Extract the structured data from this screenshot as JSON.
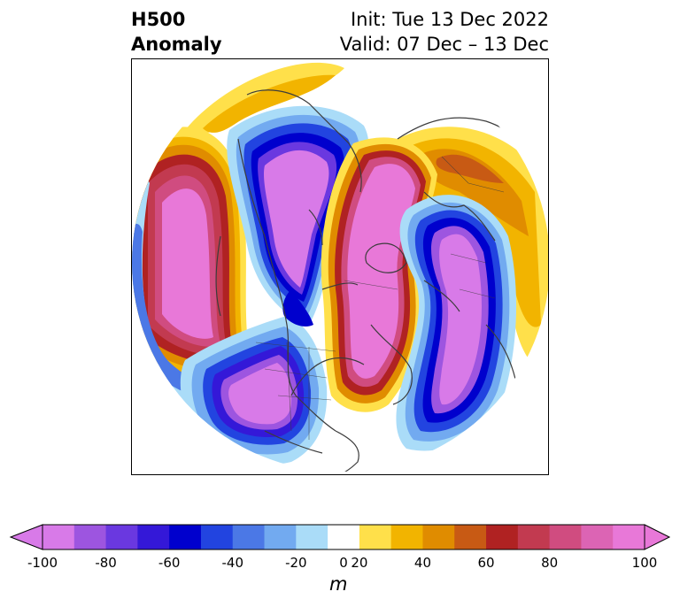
{
  "title": {
    "left_line1": "H500",
    "left_line2": "Anomaly",
    "right_line1": "Init: Tue 13 Dec 2022",
    "right_line2": "Valid: 07 Dec – 13 Dec"
  },
  "colorbar": {
    "units": "m",
    "ticks": [
      "-100",
      "-80",
      "-60",
      "-40",
      "-20",
      "0",
      "20",
      "40",
      "60",
      "80",
      "100"
    ],
    "levels": [
      -100,
      -90,
      -80,
      -70,
      -60,
      -50,
      -40,
      -30,
      -20,
      -10,
      10,
      20,
      30,
      40,
      50,
      60,
      70,
      80,
      90,
      100
    ],
    "colors": [
      "#d87ae8",
      "#9d55e0",
      "#6a38e0",
      "#3418d8",
      "#0000cd",
      "#2244e0",
      "#4b78e6",
      "#72aaf0",
      "#aadcf8",
      "#ffffff",
      "#ffe04a",
      "#f2b400",
      "#e08c00",
      "#c85a14",
      "#b02222",
      "#c23a50",
      "#d04c80",
      "#dc64b4",
      "#e878d8"
    ],
    "extend_low_color": "#d87ae8",
    "extend_high_color": "#e878d8"
  },
  "map": {
    "projection": "north polar stereographic",
    "ocean_color": "#ffffff",
    "coastline_color": "#3c3c3c",
    "anomaly_centers": [
      {
        "name": "ridge-north-pacific",
        "sign": "positive"
      },
      {
        "name": "trough-alaska-yukon",
        "sign": "negative"
      },
      {
        "name": "trough-central-us",
        "sign": "negative"
      },
      {
        "name": "ridge-greenland-arctic",
        "sign": "positive"
      },
      {
        "name": "trough-siberia",
        "sign": "negative"
      },
      {
        "name": "ridge-eastern-siberia",
        "sign": "positive"
      }
    ]
  }
}
